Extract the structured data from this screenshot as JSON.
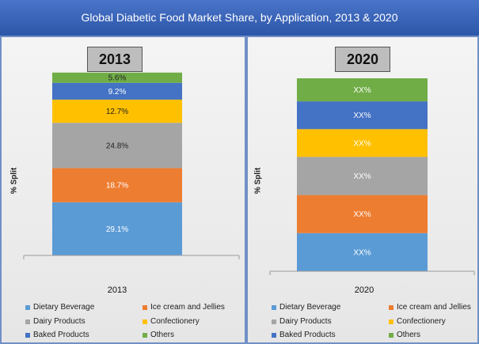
{
  "title": "Global Diabetic Food Market Share, by Application, 2013 & 2020",
  "legend_entries": [
    {
      "label": "Dietary Beverage",
      "color": "#5b9bd5"
    },
    {
      "label": "Ice cream and Jellies",
      "color": "#ed7d31"
    },
    {
      "label": "Dairy Products",
      "color": "#a5a5a5"
    },
    {
      "label": "Confectionery",
      "color": "#ffc000"
    },
    {
      "label": "Baked Products",
      "color": "#4472c4"
    },
    {
      "label": "Others",
      "color": "#70ad47"
    }
  ],
  "chart_data": [
    {
      "type": "bar",
      "stacked": true,
      "title": "2013",
      "ylabel": "% Split",
      "categories": [
        "2013"
      ],
      "ylim": [
        0,
        100
      ],
      "series": [
        {
          "name": "Dietary Beverage",
          "values": [
            29.1
          ],
          "label": "29.1%",
          "color": "#5b9bd5"
        },
        {
          "name": "Ice cream and Jellies",
          "values": [
            18.7
          ],
          "label": "18.7%",
          "color": "#ed7d31"
        },
        {
          "name": "Dairy Products",
          "values": [
            24.8
          ],
          "label": "24.8%",
          "color": "#a5a5a5"
        },
        {
          "name": "Confectionery",
          "values": [
            12.7
          ],
          "label": "12.7%",
          "color": "#ffc000"
        },
        {
          "name": "Baked Products",
          "values": [
            9.2
          ],
          "label": "9.2%",
          "color": "#4472c4"
        },
        {
          "name": "Others",
          "values": [
            5.6
          ],
          "label": "5.6%",
          "color": "#70ad47"
        }
      ]
    },
    {
      "type": "bar",
      "stacked": true,
      "title": "2020",
      "ylabel": "% Split",
      "categories": [
        "2020"
      ],
      "ylim": [
        0,
        100
      ],
      "series": [
        {
          "name": "Dietary Beverage",
          "values": [
            19.2
          ],
          "label": "XX%",
          "color": "#5b9bd5"
        },
        {
          "name": "Ice cream and Jellies",
          "values": [
            19.2
          ],
          "label": "XX%",
          "color": "#ed7d31"
        },
        {
          "name": "Dairy Products",
          "values": [
            19.2
          ],
          "label": "XX%",
          "color": "#a5a5a5"
        },
        {
          "name": "Confectionery",
          "values": [
            14.0
          ],
          "label": "XX%",
          "color": "#ffc000"
        },
        {
          "name": "Baked Products",
          "values": [
            14.0
          ],
          "label": "XX%",
          "color": "#4472c4"
        },
        {
          "name": "Others",
          "values": [
            11.6
          ],
          "label": "XX%",
          "color": "#70ad47"
        }
      ]
    }
  ]
}
